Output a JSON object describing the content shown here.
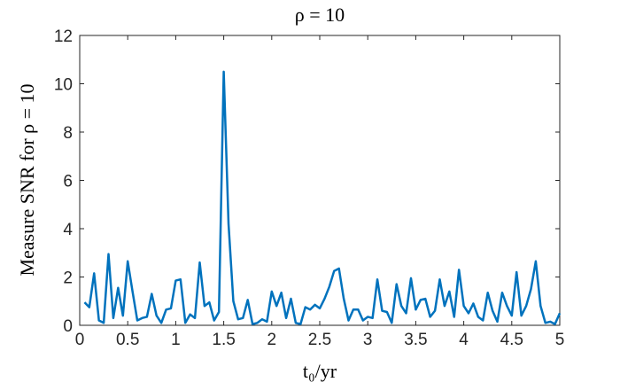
{
  "chart_data": {
    "type": "line",
    "title": "ρ = 10",
    "xlabel": "t₀/yr",
    "ylabel": "Measure SNR for ρ = 10",
    "x": [
      0.05,
      0.1,
      0.15,
      0.2,
      0.25,
      0.3,
      0.35,
      0.4,
      0.45,
      0.5,
      0.55,
      0.6,
      0.65,
      0.7,
      0.75,
      0.8,
      0.85,
      0.9,
      0.95,
      1.0,
      1.05,
      1.1,
      1.15,
      1.2,
      1.25,
      1.3,
      1.35,
      1.4,
      1.45,
      1.5,
      1.55,
      1.6,
      1.65,
      1.7,
      1.75,
      1.8,
      1.85,
      1.9,
      1.95,
      2.0,
      2.05,
      2.1,
      2.15,
      2.2,
      2.25,
      2.3,
      2.35,
      2.4,
      2.45,
      2.5,
      2.55,
      2.6,
      2.65,
      2.7,
      2.75,
      2.8,
      2.85,
      2.9,
      2.95,
      3.0,
      3.05,
      3.1,
      3.15,
      3.2,
      3.25,
      3.3,
      3.35,
      3.4,
      3.45,
      3.5,
      3.55,
      3.6,
      3.65,
      3.7,
      3.75,
      3.8,
      3.85,
      3.9,
      3.95,
      4.0,
      4.05,
      4.1,
      4.15,
      4.2,
      4.25,
      4.3,
      4.35,
      4.4,
      4.45,
      4.5,
      4.55,
      4.6,
      4.65,
      4.7,
      4.75,
      4.8,
      4.85,
      4.9,
      4.95,
      5.0
    ],
    "series": [
      {
        "name": "SNR",
        "color": "#0072bd",
        "values": [
          0.95,
          0.75,
          2.15,
          0.2,
          0.1,
          2.95,
          0.3,
          1.55,
          0.4,
          2.65,
          1.4,
          0.2,
          0.3,
          0.35,
          1.3,
          0.4,
          0.1,
          0.65,
          0.7,
          1.85,
          1.9,
          0.1,
          0.45,
          0.3,
          2.6,
          0.8,
          0.95,
          0.2,
          0.55,
          10.5,
          4.2,
          1.0,
          0.25,
          0.3,
          1.05,
          0.05,
          0.1,
          0.25,
          0.15,
          1.4,
          0.8,
          1.35,
          0.3,
          1.1,
          0.1,
          0.05,
          0.75,
          0.65,
          0.85,
          0.7,
          1.1,
          1.6,
          2.25,
          2.35,
          1.1,
          0.2,
          0.65,
          0.65,
          0.2,
          0.35,
          0.3,
          1.9,
          0.6,
          0.55,
          0.1,
          1.7,
          0.8,
          0.5,
          1.95,
          0.65,
          1.05,
          1.1,
          0.35,
          0.6,
          1.9,
          0.8,
          1.4,
          0.35,
          2.3,
          0.8,
          0.5,
          0.9,
          0.35,
          0.2,
          1.35,
          0.6,
          0.15,
          1.35,
          0.8,
          0.4,
          2.2,
          0.4,
          0.8,
          1.5,
          2.65,
          0.8,
          0.1,
          0.15,
          0.05,
          0.5
        ]
      }
    ],
    "xlim": [
      0,
      5
    ],
    "xticks": [
      0,
      0.5,
      1,
      1.5,
      2,
      2.5,
      3,
      3.5,
      4,
      4.5,
      5
    ],
    "ylim": [
      0,
      12
    ],
    "yticks": [
      0,
      2,
      4,
      6,
      8,
      10,
      12
    ]
  }
}
